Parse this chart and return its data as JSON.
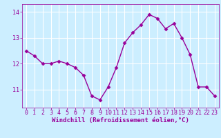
{
  "x": [
    0,
    1,
    2,
    3,
    4,
    5,
    6,
    7,
    8,
    9,
    10,
    11,
    12,
    13,
    14,
    15,
    16,
    17,
    18,
    19,
    20,
    21,
    22,
    23
  ],
  "y": [
    12.5,
    12.3,
    12.0,
    12.0,
    12.1,
    12.0,
    11.85,
    11.55,
    10.75,
    10.6,
    11.1,
    11.85,
    12.8,
    13.2,
    13.5,
    13.9,
    13.75,
    13.35,
    13.55,
    13.0,
    12.35,
    11.1,
    11.1,
    10.75
  ],
  "line_color": "#990099",
  "marker": "D",
  "markersize": 2.5,
  "linewidth": 1.0,
  "bg_color": "#cceeff",
  "grid_color": "#ffffff",
  "tick_color": "#990099",
  "label_color": "#990099",
  "xlabel": "Windchill (Refroidissement éolien,°C)",
  "ylim": [
    10.3,
    14.3
  ],
  "yticks": [
    11,
    12,
    13,
    14
  ],
  "xticks": [
    0,
    1,
    2,
    3,
    4,
    5,
    6,
    7,
    8,
    9,
    10,
    11,
    12,
    13,
    14,
    15,
    16,
    17,
    18,
    19,
    20,
    21,
    22,
    23
  ],
  "xlabel_fontsize": 6.5,
  "tick_fontsize": 6.0,
  "figwidth": 3.2,
  "figheight": 2.0,
  "dpi": 100
}
